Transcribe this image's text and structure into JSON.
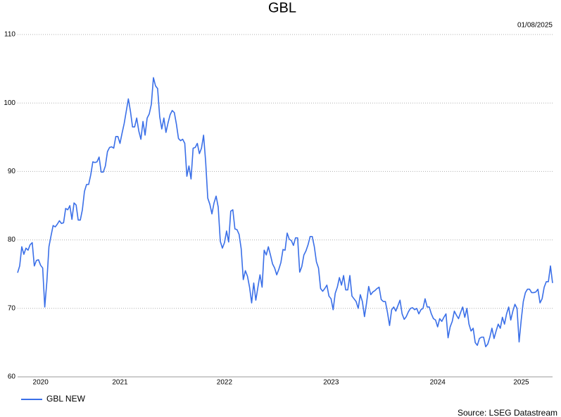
{
  "chart_data": {
    "type": "line",
    "title": "GBL",
    "date": "01/08/2025",
    "source": "Source: LSEG Datastream",
    "categories": [
      null,
      null,
      null,
      null,
      null,
      null,
      null,
      null,
      null,
      null,
      null,
      "2020",
      null,
      null,
      null,
      null,
      null,
      null,
      null,
      null,
      null,
      null,
      null,
      null,
      null,
      null,
      null,
      null,
      null,
      null,
      null,
      null,
      null,
      null,
      null,
      null,
      null,
      null,
      null,
      null,
      null,
      null,
      null,
      null,
      null,
      null,
      null,
      null,
      null,
      "2021",
      null,
      null,
      null,
      null,
      null,
      null,
      null,
      null,
      null,
      null,
      null,
      null,
      null,
      null,
      null,
      null,
      null,
      null,
      null,
      null,
      null,
      null,
      null,
      null,
      null,
      null,
      null,
      null,
      null,
      null,
      null,
      null,
      null,
      null,
      null,
      null,
      null,
      null,
      null,
      null,
      null,
      null,
      null,
      null,
      null,
      null,
      null,
      null,
      null,
      "2022",
      null,
      null,
      null,
      null,
      null,
      null,
      null,
      null,
      null,
      null,
      null,
      null,
      null,
      null,
      null,
      null,
      null,
      null,
      null,
      null,
      null,
      null,
      null,
      null,
      null,
      null,
      null,
      null,
      null,
      null,
      null,
      null,
      null,
      null,
      null,
      null,
      null,
      null,
      null,
      null,
      null,
      null,
      null,
      null,
      null,
      null,
      null,
      null,
      null,
      null,
      "2023",
      null,
      null,
      null,
      null,
      null,
      null,
      null,
      null,
      null,
      null,
      null,
      null,
      null,
      null,
      null,
      null,
      null,
      null,
      null,
      null,
      null,
      null,
      null,
      null,
      null,
      null,
      null,
      null,
      null,
      null,
      null,
      null,
      null,
      null,
      null,
      null,
      null,
      null,
      null,
      null,
      null,
      null,
      null,
      null,
      null,
      null,
      null,
      null,
      null,
      null,
      "2024",
      null,
      null,
      null,
      null,
      null,
      null,
      null,
      null,
      null,
      null,
      null,
      null,
      null,
      null,
      null,
      null,
      null,
      null,
      null,
      null,
      null,
      null,
      null,
      null,
      null,
      null,
      null,
      null,
      null,
      null,
      null,
      null,
      null,
      null,
      null,
      null,
      null,
      null,
      null,
      "2025",
      null,
      null,
      null,
      null,
      null,
      null,
      null,
      null,
      null,
      null,
      null,
      null,
      null,
      null,
      null
    ],
    "series": [
      {
        "name": "GBL NEW",
        "color": "#3a6fe8",
        "values": [
          75.2,
          76.2,
          79.0,
          77.9,
          78.8,
          78.5,
          79.3,
          79.6,
          76.2,
          77.0,
          77.1,
          76.3,
          75.9,
          70.2,
          73.9,
          79.0,
          80.6,
          82.1,
          81.9,
          82.3,
          82.8,
          82.4,
          82.5,
          84.6,
          84.4,
          85.0,
          83.0,
          85.4,
          85.1,
          82.9,
          82.9,
          84.4,
          87.1,
          88.1,
          88.1,
          89.5,
          91.4,
          91.3,
          91.4,
          92.1,
          89.9,
          89.9,
          90.8,
          92.9,
          93.5,
          93.6,
          93.4,
          95.1,
          95.1,
          94.1,
          95.6,
          97.0,
          98.8,
          100.6,
          98.8,
          96.5,
          96.5,
          97.8,
          95.9,
          94.7,
          97.3,
          95.3,
          97.8,
          98.4,
          99.8,
          103.7,
          102.5,
          102.1,
          98.0,
          96.2,
          97.8,
          95.7,
          97.1,
          98.3,
          98.9,
          98.6,
          96.9,
          94.8,
          94.5,
          94.7,
          94.1,
          89.3,
          90.8,
          88.9,
          93.4,
          93.5,
          94.1,
          92.6,
          93.4,
          95.3,
          91.4,
          86.1,
          85.2,
          83.8,
          85.4,
          86.4,
          84.8,
          79.8,
          78.8,
          79.6,
          81.3,
          79.7,
          84.2,
          84.4,
          81.6,
          81.5,
          80.8,
          78.7,
          74.2,
          75.5,
          74.7,
          73.1,
          70.8,
          73.7,
          71.2,
          73.1,
          74.9,
          73.1,
          78.5,
          77.8,
          79.0,
          77.8,
          76.5,
          75.9,
          74.9,
          75.7,
          76.7,
          78.6,
          78.5,
          81.0,
          80.1,
          79.9,
          79.2,
          80.3,
          80.3,
          75.3,
          76.1,
          77.8,
          78.4,
          79.3,
          80.5,
          80.5,
          79.0,
          76.8,
          75.9,
          72.9,
          72.5,
          72.9,
          73.4,
          71.8,
          71.4,
          69.8,
          72.2,
          73.1,
          74.5,
          73.4,
          74.8,
          72.7,
          72.7,
          74.8,
          71.8,
          71.4,
          71.0,
          70.0,
          72.0,
          71.0,
          68.8,
          70.8,
          73.2,
          72.0,
          72.4,
          72.6,
          72.9,
          73.1,
          71.3,
          71.0,
          71.0,
          69.4,
          67.5,
          69.8,
          70.2,
          69.6,
          70.4,
          71.2,
          69.2,
          68.4,
          68.8,
          69.5,
          70.0,
          70.1,
          69.8,
          70.0,
          69.2,
          69.8,
          70.0,
          71.4,
          70.2,
          70.2,
          69.2,
          68.5,
          68.3,
          67.3,
          68.5,
          68.1,
          68.7,
          69.2,
          65.7,
          67.3,
          68.1,
          69.6,
          69.0,
          68.5,
          69.4,
          70.2,
          68.7,
          70.0,
          67.7,
          66.7,
          67.1,
          65.0,
          64.6,
          65.6,
          65.8,
          65.8,
          64.4,
          64.8,
          65.8,
          67.1,
          65.6,
          66.7,
          67.7,
          67.1,
          68.7,
          67.7,
          69.2,
          70.2,
          68.3,
          69.6,
          70.6,
          70.0,
          65.1,
          68.3,
          71.0,
          72.3,
          72.8,
          72.8,
          72.3,
          72.3,
          72.4,
          72.8,
          70.8,
          71.4,
          73.1,
          73.9,
          73.9,
          76.2,
          73.7
        ]
      }
    ],
    "ylim": [
      60,
      110
    ],
    "yticks": [
      60,
      70,
      80,
      90,
      100,
      110
    ],
    "grid": true
  }
}
